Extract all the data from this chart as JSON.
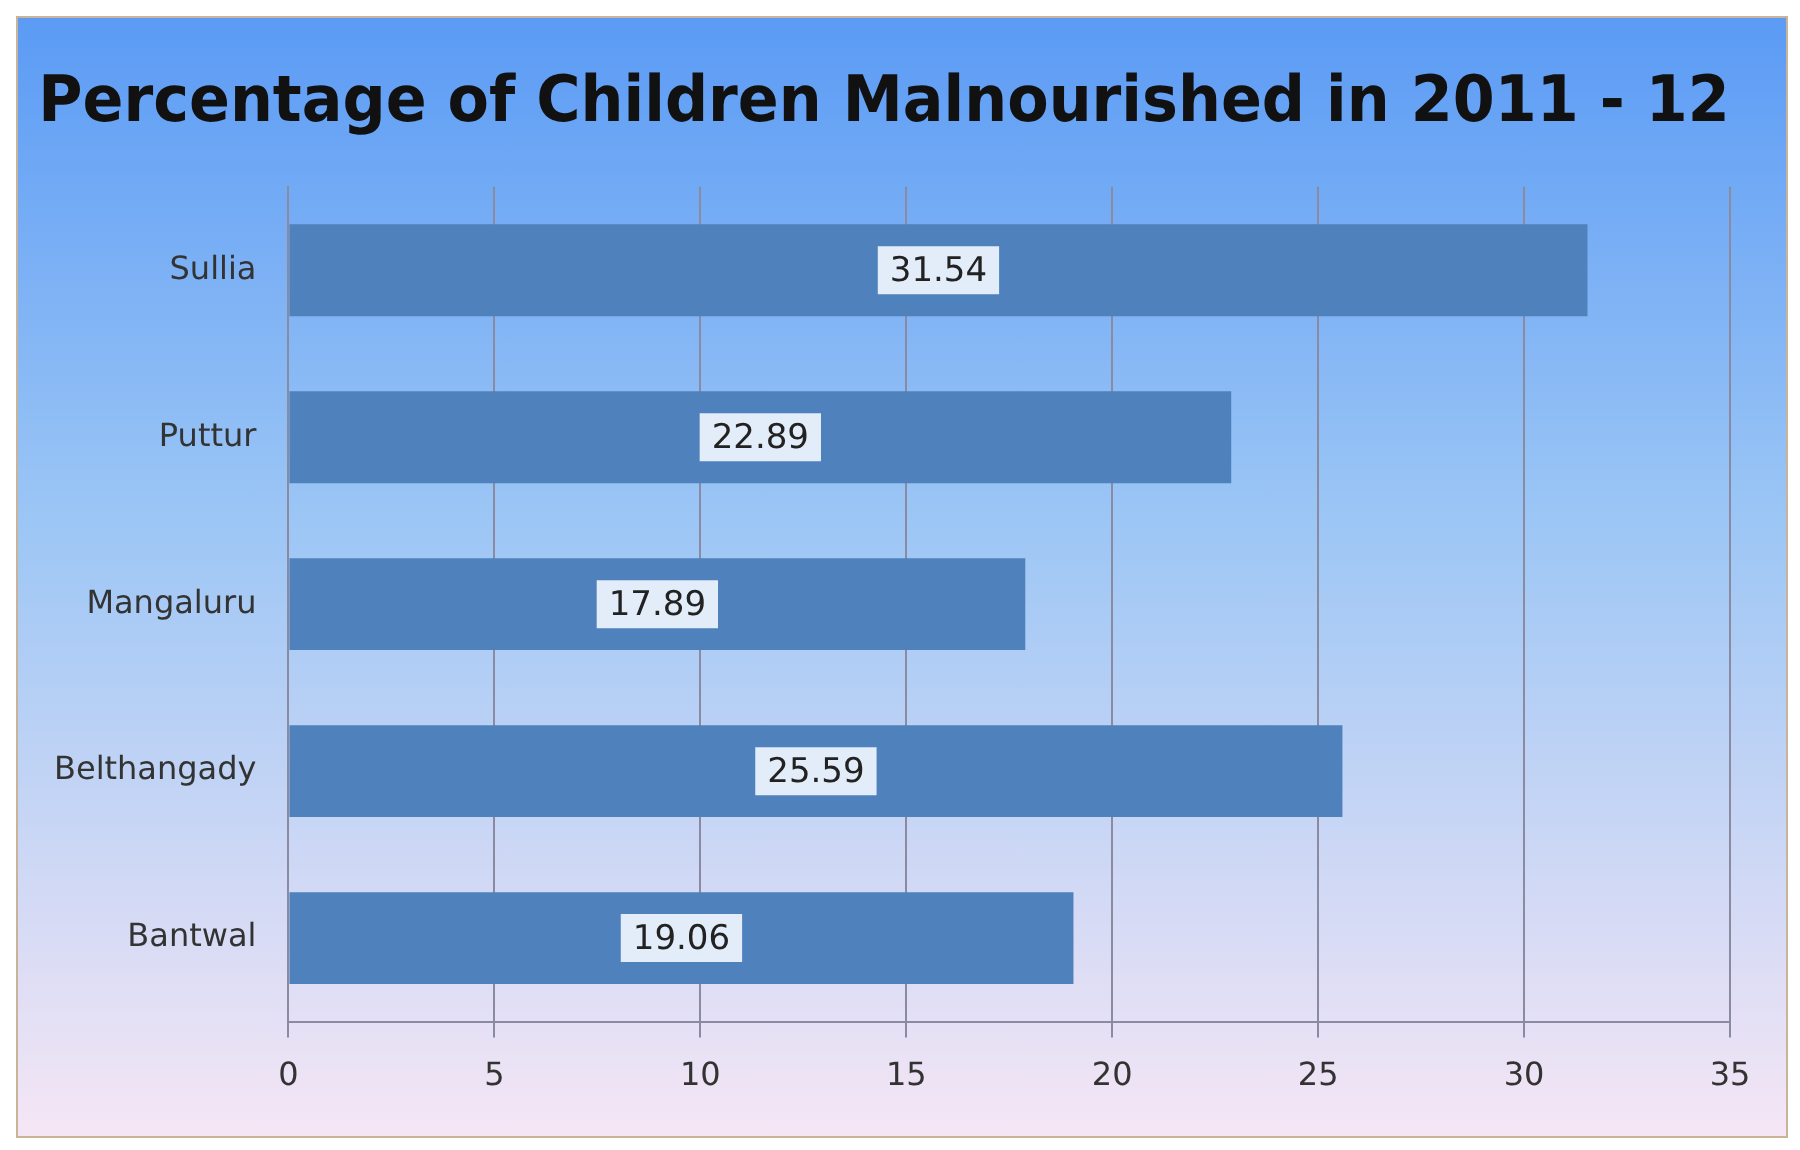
{
  "chart_data": {
    "type": "bar",
    "orientation": "horizontal",
    "title": "Percentage of Children Malnourished in 2011 - 12",
    "categories": [
      "Sullia",
      "Puttur",
      "Mangaluru",
      "Belthangady",
      "Bantwal"
    ],
    "values": [
      31.54,
      22.89,
      17.89,
      25.59,
      19.06
    ],
    "color": "#4f81bd",
    "xlim": [
      0,
      35
    ],
    "xticks": [
      0,
      5,
      10,
      15,
      20,
      25,
      30,
      35
    ],
    "grid": "x",
    "data_labels": true,
    "legend": false
  }
}
